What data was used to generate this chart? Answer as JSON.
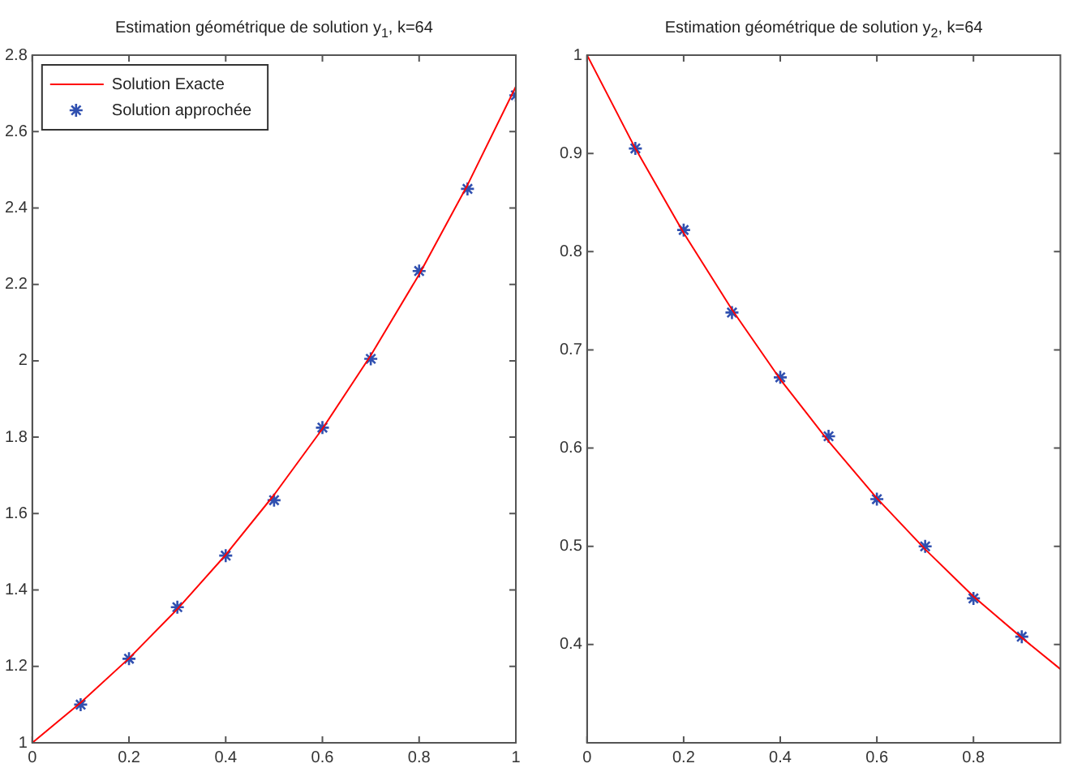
{
  "chart_data": [
    {
      "type": "line",
      "title": "Estimation géométrique de solution y$_{1}$, k=64",
      "xlim": [
        0,
        1
      ],
      "xticks": [
        0,
        0.2,
        0.4,
        0.6,
        0.8,
        1
      ],
      "ylim": [
        1,
        2.8
      ],
      "yticks": [
        1,
        1.2,
        1.4,
        1.6,
        1.8,
        2,
        2.2,
        2.4,
        2.6,
        2.8
      ],
      "grid": false,
      "legend": "top left",
      "series": [
        {
          "name": "Solution Exacte",
          "type": "line",
          "color": "#ff0000",
          "marker": "none",
          "line_style": "solid",
          "x": [
            0,
            0.1,
            0.2,
            0.3,
            0.4,
            0.5,
            0.6,
            0.7,
            0.8,
            0.9,
            1
          ],
          "values": [
            1,
            1.105,
            1.221,
            1.35,
            1.492,
            1.649,
            1.822,
            2.014,
            2.226,
            2.46,
            2.718
          ]
        },
        {
          "name": "Solution approchée",
          "type": "scatter",
          "color": "#3050b0",
          "marker": "cross",
          "x": [
            0.1,
            0.2,
            0.3,
            0.4,
            0.5,
            0.6,
            0.7,
            0.8,
            0.9,
            1
          ],
          "values": [
            1.1,
            1.22,
            1.355,
            1.49,
            1.635,
            1.825,
            2.005,
            2.235,
            2.45,
            2.695
          ]
        }
      ]
    },
    {
      "type": "line",
      "title": "Estimation géométrique de solution y$_{2}$, k=64",
      "xlim": [
        0,
        0.98
      ],
      "xticks": [
        0,
        0.2,
        0.4,
        0.6,
        0.8
      ],
      "ylim": [
        0.3,
        1
      ],
      "yticks": [
        0.4,
        0.5,
        0.6,
        0.7,
        0.8,
        0.9,
        1
      ],
      "grid": false,
      "legend": false,
      "series": [
        {
          "type": "line",
          "color": "#ff0000",
          "marker": "none",
          "line_style": "solid",
          "x": [
            0,
            0.1,
            0.2,
            0.3,
            0.4,
            0.5,
            0.6,
            0.7,
            0.8,
            0.9,
            0.98
          ],
          "values": [
            1,
            0.905,
            0.819,
            0.741,
            0.67,
            0.607,
            0.549,
            0.497,
            0.449,
            0.407,
            0.375
          ]
        },
        {
          "type": "scatter",
          "color": "#3050b0",
          "marker": "cross",
          "x": [
            0.1,
            0.2,
            0.3,
            0.4,
            0.5,
            0.6,
            0.7,
            0.8,
            0.9
          ],
          "values": [
            0.905,
            0.822,
            0.738,
            0.672,
            0.612,
            0.548,
            0.5,
            0.447,
            0.408
          ]
        }
      ]
    }
  ]
}
